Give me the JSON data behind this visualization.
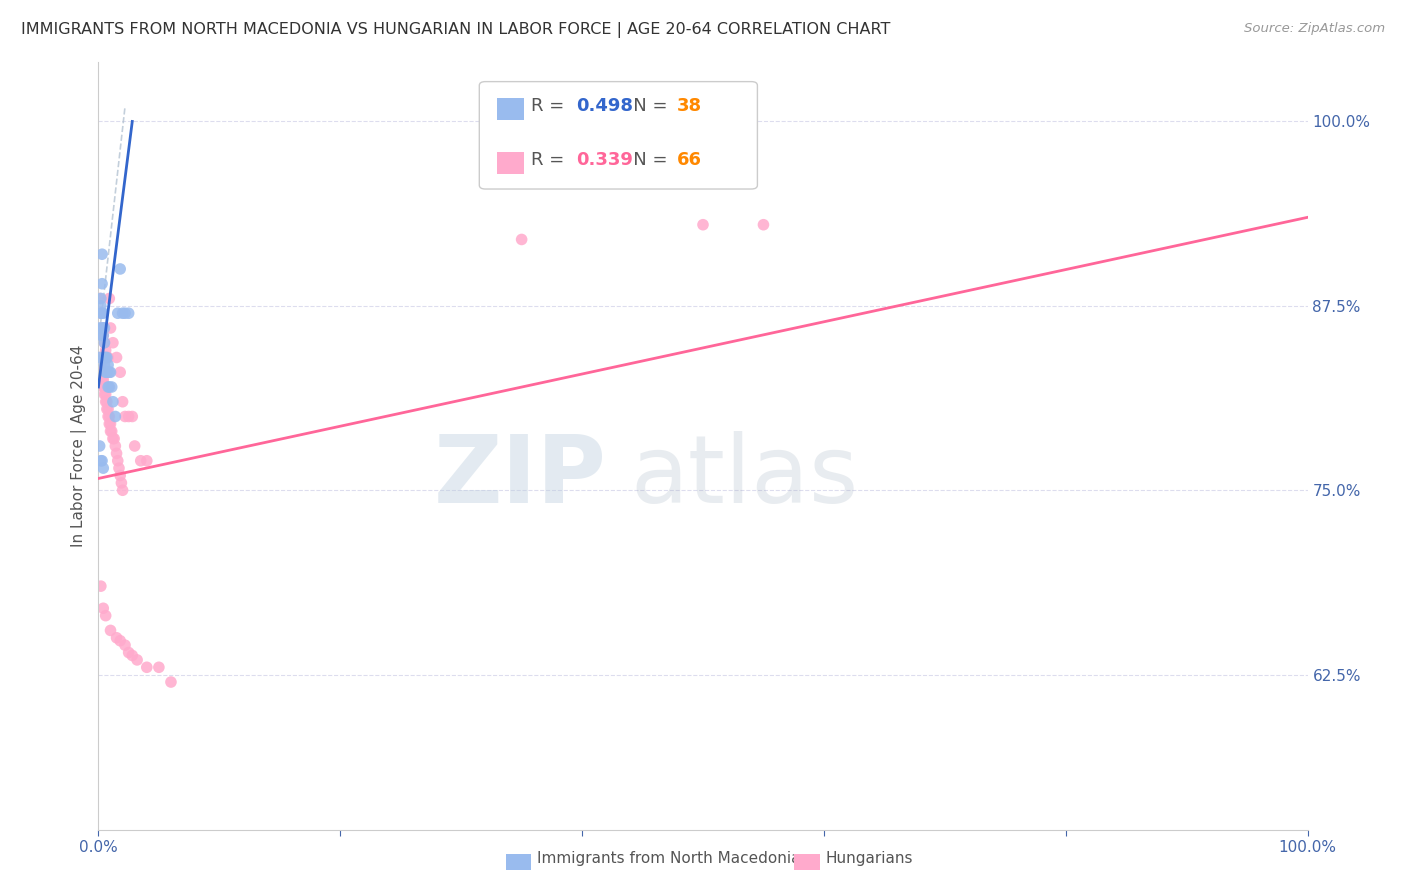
{
  "title": "IMMIGRANTS FROM NORTH MACEDONIA VS HUNGARIAN IN LABOR FORCE | AGE 20-64 CORRELATION CHART",
  "source": "Source: ZipAtlas.com",
  "ylabel": "In Labor Force | Age 20-64",
  "ytick_values": [
    0.625,
    0.75,
    0.875,
    1.0
  ],
  "xlim": [
    0.0,
    1.0
  ],
  "ylim": [
    0.52,
    1.04
  ],
  "legend_blue_R": "0.498",
  "legend_blue_N": "38",
  "legend_pink_R": "0.339",
  "legend_pink_N": "66",
  "legend_blue_label": "Immigrants from North Macedonia",
  "legend_pink_label": "Hungarians",
  "blue_color": "#99BBEE",
  "pink_color": "#FFAACC",
  "blue_line_color": "#3366CC",
  "pink_line_color": "#FF6699",
  "ref_line_color": "#AABBCC",
  "grid_color": "#DDDDEE",
  "background_color": "#FFFFFF",
  "blue_scatter_x": [
    0.001,
    0.001,
    0.002,
    0.002,
    0.002,
    0.002,
    0.003,
    0.003,
    0.003,
    0.003,
    0.004,
    0.004,
    0.004,
    0.005,
    0.005,
    0.005,
    0.005,
    0.006,
    0.006,
    0.007,
    0.007,
    0.008,
    0.008,
    0.009,
    0.009,
    0.01,
    0.011,
    0.012,
    0.014,
    0.016,
    0.018,
    0.02,
    0.022,
    0.025,
    0.001,
    0.002,
    0.003,
    0.004
  ],
  "blue_scatter_y": [
    0.84,
    0.86,
    0.87,
    0.88,
    0.855,
    0.875,
    0.89,
    0.91,
    0.87,
    0.86,
    0.87,
    0.86,
    0.855,
    0.86,
    0.85,
    0.84,
    0.835,
    0.84,
    0.83,
    0.84,
    0.83,
    0.835,
    0.82,
    0.83,
    0.82,
    0.83,
    0.82,
    0.81,
    0.8,
    0.87,
    0.9,
    0.87,
    0.87,
    0.87,
    0.78,
    0.77,
    0.77,
    0.765
  ],
  "pink_scatter_x": [
    0.001,
    0.001,
    0.002,
    0.002,
    0.003,
    0.003,
    0.004,
    0.004,
    0.005,
    0.005,
    0.006,
    0.006,
    0.007,
    0.007,
    0.008,
    0.008,
    0.009,
    0.009,
    0.01,
    0.01,
    0.011,
    0.012,
    0.013,
    0.014,
    0.015,
    0.016,
    0.017,
    0.018,
    0.019,
    0.02,
    0.001,
    0.002,
    0.003,
    0.004,
    0.005,
    0.006,
    0.007,
    0.008,
    0.009,
    0.01,
    0.012,
    0.015,
    0.018,
    0.02,
    0.022,
    0.025,
    0.028,
    0.03,
    0.035,
    0.04,
    0.002,
    0.004,
    0.006,
    0.01,
    0.015,
    0.018,
    0.022,
    0.025,
    0.028,
    0.032,
    0.04,
    0.05,
    0.06,
    0.55,
    0.5,
    0.35
  ],
  "pink_scatter_y": [
    0.84,
    0.835,
    0.835,
    0.83,
    0.83,
    0.825,
    0.825,
    0.82,
    0.82,
    0.815,
    0.815,
    0.81,
    0.81,
    0.805,
    0.805,
    0.8,
    0.8,
    0.795,
    0.795,
    0.79,
    0.79,
    0.785,
    0.785,
    0.78,
    0.775,
    0.77,
    0.765,
    0.76,
    0.755,
    0.75,
    0.88,
    0.87,
    0.86,
    0.855,
    0.85,
    0.845,
    0.84,
    0.84,
    0.88,
    0.86,
    0.85,
    0.84,
    0.83,
    0.81,
    0.8,
    0.8,
    0.8,
    0.78,
    0.77,
    0.77,
    0.685,
    0.67,
    0.665,
    0.655,
    0.65,
    0.648,
    0.645,
    0.64,
    0.638,
    0.635,
    0.63,
    0.63,
    0.62,
    0.93,
    0.93,
    0.92
  ],
  "pink_line_x0": 0.0,
  "pink_line_y0": 0.758,
  "pink_line_x1": 1.0,
  "pink_line_y1": 0.935,
  "blue_line_x0": 0.0,
  "blue_line_y0": 0.82,
  "blue_line_x1": 0.028,
  "blue_line_y1": 1.0,
  "ref_line_x0": 0.0,
  "ref_line_y0": 0.85,
  "ref_line_x1": 0.022,
  "ref_line_y1": 1.01
}
